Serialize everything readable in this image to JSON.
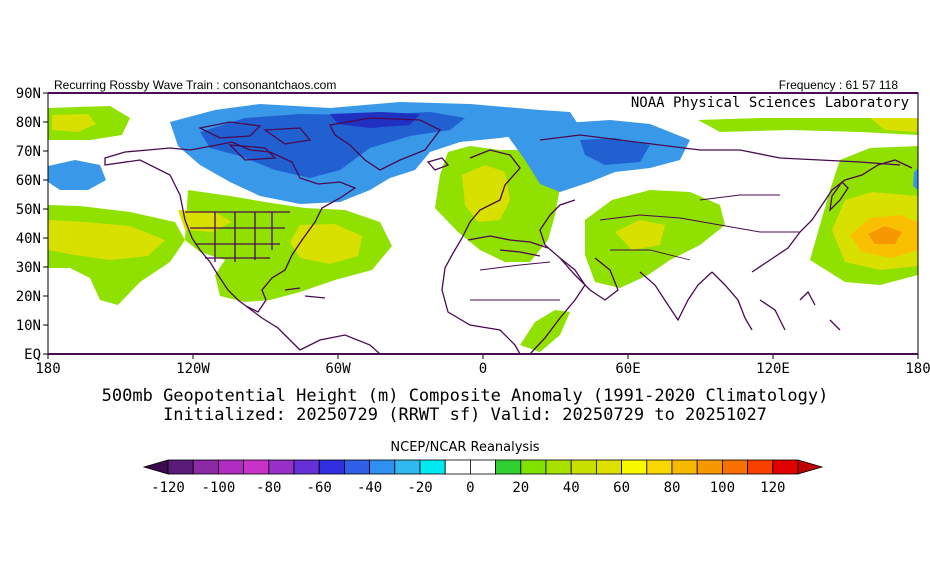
{
  "header": {
    "left": "Recurring Rossby Wave Train : consonantchaos.com",
    "right": "Frequency : 61 57 118"
  },
  "credit": "NOAA Physical Sciences Laboratory",
  "title_line1": "500mb Geopotential Height (m) Composite Anomaly (1991-2020 Climatology)",
  "title_line2": "Initialized: 20250729 (RRWT sf) Valid: 20250729 to 20251027",
  "colorbar_title": "NCEP/NCAR Reanalysis",
  "axes": {
    "lat_labels": [
      "90N",
      "80N",
      "70N",
      "60N",
      "50N",
      "40N",
      "30N",
      "20N",
      "10N",
      "EQ"
    ],
    "lon_labels": [
      "180",
      "120W",
      "60W",
      "0",
      "60E",
      "120E",
      "180"
    ]
  },
  "colorbar": {
    "colors": [
      "#3c0a4e",
      "#5a1a78",
      "#8c2aa6",
      "#b02cc0",
      "#c832c8",
      "#9830c8",
      "#6630d8",
      "#3030e0",
      "#3060e8",
      "#3090f0",
      "#30b8f0",
      "#00e8f0",
      "#ffffff",
      "#ffffff",
      "#30d030",
      "#80e000",
      "#a8e000",
      "#c8e000",
      "#e0e000",
      "#f8f800",
      "#f8d800",
      "#f8b800",
      "#f89800",
      "#f87000",
      "#f84000",
      "#e00000",
      "#c00000"
    ],
    "tick_labels": [
      "-120",
      "-100",
      "-80",
      "-60",
      "-40",
      "-20",
      "0",
      "20",
      "40",
      "60",
      "80",
      "100",
      "120"
    ]
  },
  "anomaly_colors": {
    "neg_light": "#3a98e8",
    "neg_dark": "#2060d0",
    "neg_darkest": "#2030c0",
    "pos_light": "#90e000",
    "pos_mid": "#d8e000",
    "pos_strong": "#f8c000",
    "pos_max": "#f89800",
    "land_outline": "#4a0a52"
  }
}
